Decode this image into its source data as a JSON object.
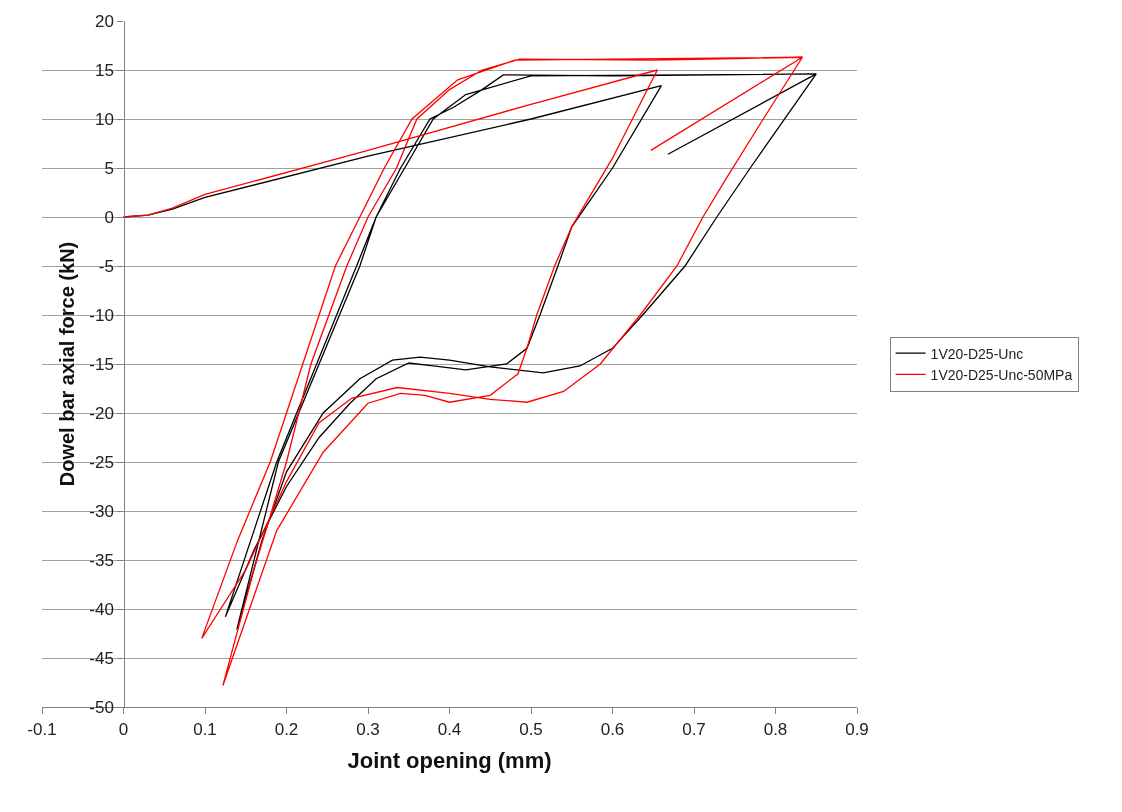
{
  "chart_data": {
    "type": "line",
    "xlabel": "Joint opening (mm)",
    "ylabel": "Dowel bar axial force (kN)",
    "xlim": [
      -0.1,
      0.9
    ],
    "xticks": [
      -0.1,
      0,
      0.1,
      0.2,
      0.3,
      0.4,
      0.5,
      0.6,
      0.7,
      0.8,
      0.9
    ],
    "ylim": [
      -50,
      20
    ],
    "yticks": [
      -50,
      -45,
      -40,
      -35,
      -30,
      -25,
      -20,
      -15,
      -10,
      -5,
      0,
      5,
      10,
      15,
      20
    ],
    "grid": "y",
    "legend": "right",
    "marker": "none",
    "line_style": "solid",
    "series": [
      {
        "name": "1V20-D25-Unc",
        "color": "#000000",
        "x": [
          0,
          0.03,
          0.06,
          0.1,
          0.3,
          0.5,
          0.66,
          0.6,
          0.55,
          0.533,
          0.511,
          0.495,
          0.47,
          0.42,
          0.38,
          0.35,
          0.31,
          0.278,
          0.24,
          0.2,
          0.16,
          0.125,
          0.188,
          0.237,
          0.286,
          0.31,
          0.34,
          0.376,
          0.405,
          0.44,
          0.466,
          0.6,
          0.85,
          0.769,
          0.728,
          0.689,
          0.637,
          0.6,
          0.56,
          0.515,
          0.45,
          0.4,
          0.364,
          0.33,
          0.29,
          0.245,
          0.2,
          0.17,
          0.139,
          0.19,
          0.24,
          0.29,
          0.31,
          0.345,
          0.38,
          0.42,
          0.5,
          0.85,
          0.668
        ],
        "values": [
          0,
          0.2,
          0.8,
          2,
          6.2,
          10,
          13.4,
          5,
          -1,
          -5,
          -10,
          -13.4,
          -15,
          -15.6,
          -15.2,
          -14.9,
          -16.5,
          -19,
          -22.5,
          -27.5,
          -34,
          -40.8,
          -25,
          -15,
          -5,
          0,
          5,
          10,
          11.2,
          13,
          14.5,
          14.4,
          14.6,
          5,
          0,
          -5,
          -10,
          -13.4,
          -15.2,
          -15.9,
          -15.3,
          -14.6,
          -14.3,
          -14.6,
          -16.5,
          -20,
          -26,
          -33,
          -42.1,
          -25,
          -15,
          -5,
          0,
          5,
          10,
          12.5,
          14.4,
          14.6,
          6.4
        ]
      },
      {
        "name": "1V20-D25-Unc-50MPa",
        "color": "#ff0000",
        "x": [
          0,
          0.03,
          0.06,
          0.1,
          0.3,
          0.5,
          0.655,
          0.6,
          0.55,
          0.529,
          0.507,
          0.495,
          0.484,
          0.45,
          0.4,
          0.37,
          0.34,
          0.3,
          0.245,
          0.188,
          0.122,
          0.16,
          0.2,
          0.23,
          0.274,
          0.3,
          0.335,
          0.36,
          0.4,
          0.44,
          0.486,
          0.65,
          0.833,
          0.785,
          0.74,
          0.711,
          0.679,
          0.634,
          0.585,
          0.54,
          0.495,
          0.45,
          0.4,
          0.336,
          0.28,
          0.24,
          0.2,
          0.15,
          0.096,
          0.14,
          0.18,
          0.22,
          0.26,
          0.29,
          0.32,
          0.354,
          0.41,
          0.48,
          0.833,
          0.647
        ],
        "values": [
          0,
          0.2,
          0.9,
          2.3,
          6.8,
          11.5,
          15,
          6,
          -1,
          -5,
          -10,
          -13.4,
          -16,
          -18.2,
          -18.9,
          -18.2,
          -18,
          -19,
          -24,
          -32,
          -47.8,
          -36,
          -25,
          -15,
          -5,
          0,
          5,
          10,
          13,
          15,
          16.1,
          16,
          16.3,
          10,
          4,
          0,
          -5,
          -10,
          -15,
          -17.8,
          -18.9,
          -18.6,
          -18,
          -17.4,
          -18.5,
          -21,
          -27,
          -36,
          -43,
          -33,
          -25,
          -15,
          -5,
          0,
          5,
          10,
          14,
          16,
          16.3,
          6.8
        ]
      }
    ]
  }
}
